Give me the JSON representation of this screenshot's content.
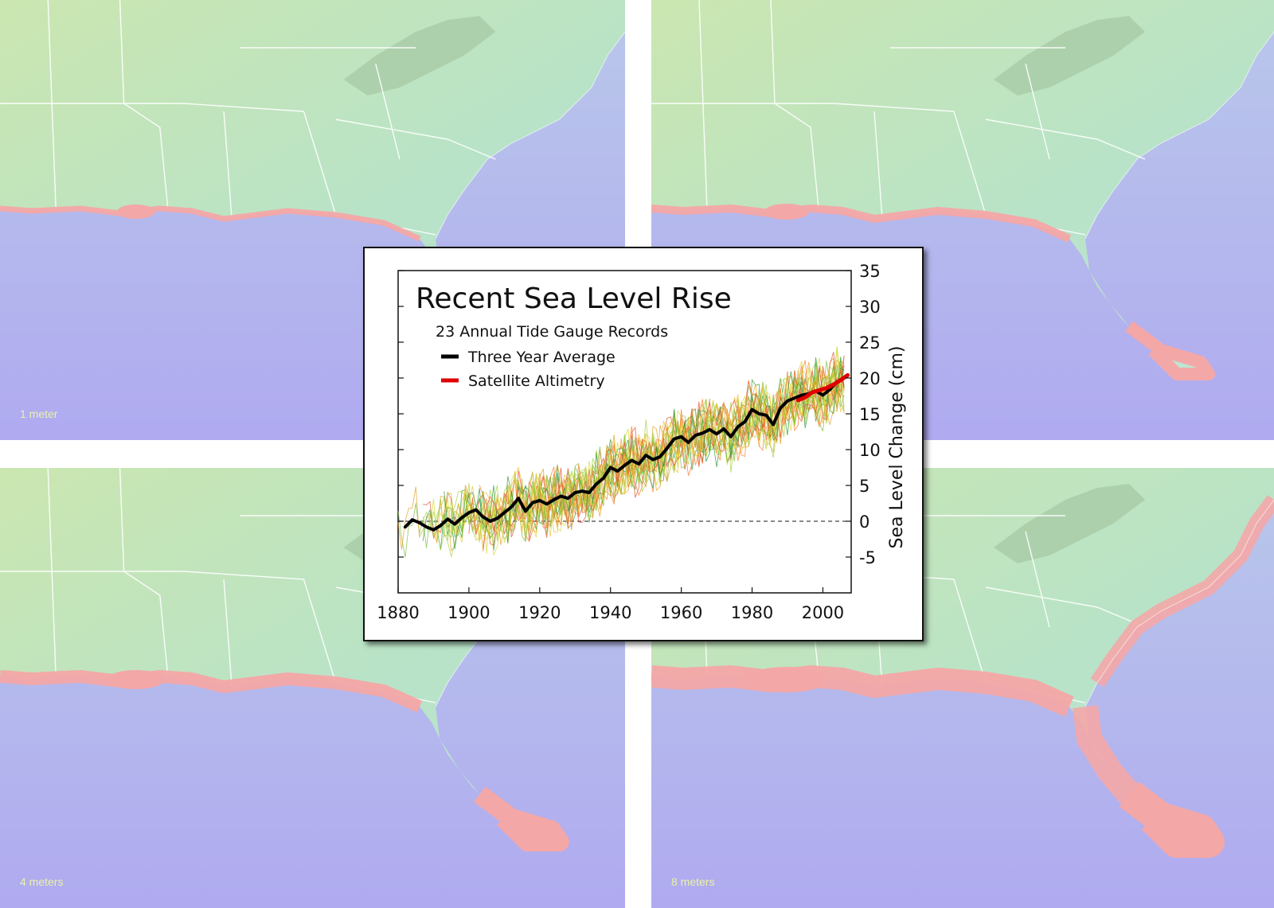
{
  "panels": [
    {
      "label": "1 meter"
    },
    {
      "label": "",
      "note_visible": false
    },
    {
      "label": "4 meters"
    },
    {
      "label": "8 meters"
    }
  ],
  "colors": {
    "land": "#b8e3c8",
    "land_north": "#cbe6b0",
    "ocean": "#b3b3ee",
    "ocean_deep": "#b0aaf0",
    "flood": "#f4a7a7",
    "border": "#ffffff",
    "series_avg": "#000000",
    "series_sat": "#e00000"
  },
  "chart_data": {
    "type": "line",
    "title": "Recent Sea Level Rise",
    "subtitle": "23 Annual Tide Gauge Records",
    "ylabel": "Sea Level Change (cm)",
    "xlabel": "",
    "xlim": [
      1880,
      2008
    ],
    "ylim": [
      -10,
      35
    ],
    "x_ticks": [
      1880,
      1900,
      1920,
      1940,
      1960,
      1980,
      2000
    ],
    "y_ticks": [
      35,
      30,
      25,
      20,
      15,
      10,
      5,
      0,
      -5
    ],
    "y_tick_labels": [
      "35",
      "30",
      "25",
      "20",
      "15",
      "10",
      "5",
      "0",
      "-5"
    ],
    "legend_position": "top-left",
    "legend": [
      {
        "name": "Three Year Average",
        "color": "#000000"
      },
      {
        "name": "Satellite Altimetry",
        "color": "#e00000"
      }
    ],
    "series": [
      {
        "name": "Three Year Average",
        "x": [
          1882,
          1884,
          1886,
          1888,
          1890,
          1892,
          1894,
          1896,
          1898,
          1900,
          1902,
          1904,
          1906,
          1908,
          1910,
          1912,
          1914,
          1916,
          1918,
          1920,
          1922,
          1924,
          1926,
          1928,
          1930,
          1932,
          1934,
          1936,
          1938,
          1940,
          1942,
          1944,
          1946,
          1948,
          1950,
          1952,
          1954,
          1956,
          1958,
          1960,
          1962,
          1964,
          1966,
          1968,
          1970,
          1972,
          1974,
          1976,
          1978,
          1980,
          1982,
          1984,
          1986,
          1988,
          1990,
          1992,
          1994,
          1996,
          1998,
          2000,
          2002,
          2004
        ],
        "values": [
          -0.8,
          0.2,
          -0.2,
          -0.8,
          -1.2,
          -0.6,
          0.3,
          -0.4,
          0.5,
          1.2,
          1.6,
          0.6,
          0.0,
          0.4,
          1.2,
          2.0,
          3.2,
          1.4,
          2.6,
          2.9,
          2.4,
          3.0,
          3.5,
          3.2,
          4.0,
          4.2,
          4.0,
          5.2,
          6.0,
          7.5,
          7.0,
          7.8,
          8.5,
          8.0,
          9.2,
          8.6,
          9.0,
          10.2,
          11.5,
          11.8,
          11.0,
          12.0,
          12.3,
          12.8,
          12.2,
          12.9,
          11.8,
          13.2,
          13.9,
          15.6,
          15.0,
          14.8,
          13.5,
          15.8,
          16.8,
          17.2,
          17.6,
          17.8,
          18.2,
          17.6,
          18.4,
          19.5
        ]
      },
      {
        "name": "Satellite Altimetry",
        "x": [
          1993,
          1995,
          1997,
          1999,
          2001,
          2003,
          2005,
          2007
        ],
        "values": [
          16.9,
          17.3,
          18.0,
          18.3,
          18.6,
          19.1,
          19.7,
          20.4
        ]
      }
    ],
    "zero_line": 0
  }
}
